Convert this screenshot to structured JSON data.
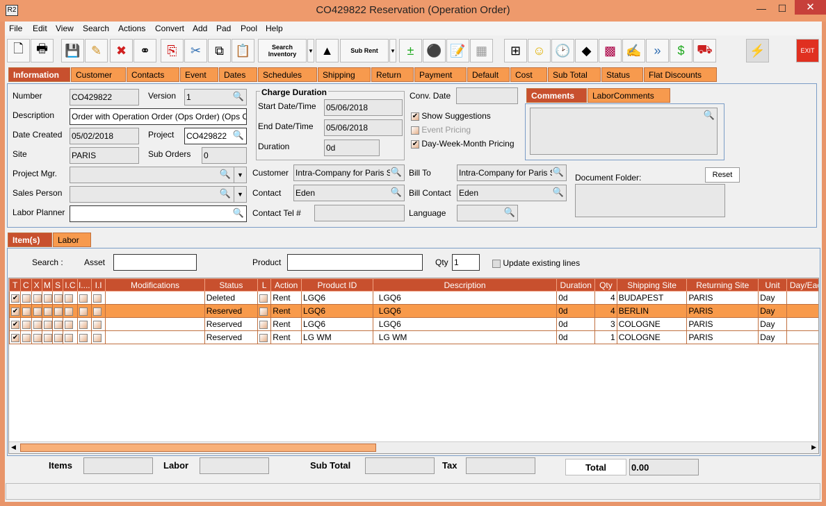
{
  "window": {
    "title": "CO429822 Reservation (Operation Order)",
    "logo": "R2"
  },
  "menu": [
    "File",
    "Edit",
    "View",
    "Search",
    "Actions",
    "Convert",
    "Add",
    "Pad",
    "Pool",
    "Help"
  ],
  "toolbar": {
    "search_inventory": "Search Inventory",
    "sub_rent": "Sub Rent",
    "exit": "EXIT"
  },
  "tabs": [
    "Information",
    "Customer",
    "Contacts",
    "Event",
    "Dates",
    "Schedules",
    "Shipping",
    "Return",
    "Payment",
    "Default",
    "Cost",
    "Sub Total",
    "Status",
    "Flat Discounts"
  ],
  "info": {
    "number_label": "Number",
    "number": "CO429822",
    "version_label": "Version",
    "version": "1",
    "description_label": "Description",
    "description": "Order with Operation Order (Ops Order) (Ops O",
    "date_created_label": "Date Created",
    "date_created": "05/02/2018",
    "project_label": "Project",
    "project": "CO429822",
    "site_label": "Site",
    "site": "PARIS",
    "sub_orders_label": "Sub Orders",
    "sub_orders": "0",
    "project_mgr_label": "Project Mgr.",
    "sales_person_label": "Sales Person",
    "labor_planner_label": "Labor Planner",
    "charge_duration": "Charge Duration",
    "start_label": "Start Date/Time",
    "start": "05/06/2018",
    "end_label": "End Date/Time",
    "end": "05/06/2018",
    "duration_label": "Duration",
    "duration": "0d",
    "conv_date_label": "Conv. Date",
    "show_suggestions": "Show Suggestions",
    "event_pricing": "Event Pricing",
    "dwm_pricing": "Day-Week-Month Pricing",
    "customer_label": "Customer",
    "customer": "Intra-Company for Paris Site",
    "contact_label": "Contact",
    "contact": "Eden",
    "contact_tel_label": "Contact Tel #",
    "bill_to_label": "Bill To",
    "bill_to": "Intra-Company for Paris Site",
    "bill_contact_label": "Bill Contact",
    "bill_contact": "Eden",
    "language_label": "Language",
    "comment_tabs": [
      "Comments",
      "LaborComments"
    ],
    "document_folder_label": "Document Folder:",
    "reset": "Reset"
  },
  "item_tabs": [
    "Item(s)",
    "Labor"
  ],
  "search": {
    "search_label": "Search :",
    "asset_label": "Asset",
    "product_label": "Product",
    "qty_label": "Qty",
    "qty": "1",
    "update_existing": "Update existing lines"
  },
  "table": {
    "columns": [
      "T",
      "C",
      "X",
      "M",
      "S",
      "I.C",
      "I....",
      "I.I",
      "Modifications",
      "Status",
      "L",
      "Action",
      "Product ID",
      "Description",
      "Duration",
      "Qty",
      "Shipping Site",
      "Returning Site",
      "Unit",
      "Day/Each"
    ],
    "rows": [
      {
        "status": "Deleted",
        "action": "Rent",
        "product_id": "LGQ6",
        "description": "LGQ6",
        "duration": "0d",
        "qty": "4",
        "shipping": "BUDAPEST",
        "returning": "PARIS",
        "unit": "Day"
      },
      {
        "status": "Reserved",
        "action": "Rent",
        "product_id": "LGQ6",
        "description": "LGQ6",
        "duration": "0d",
        "qty": "4",
        "shipping": "BERLIN",
        "returning": "PARIS",
        "unit": "Day"
      },
      {
        "status": "Reserved",
        "action": "Rent",
        "product_id": "LGQ6",
        "description": "LGQ6",
        "duration": "0d",
        "qty": "3",
        "shipping": "COLOGNE",
        "returning": "PARIS",
        "unit": "Day"
      },
      {
        "status": "Reserved",
        "action": "Rent",
        "product_id": "LG WM",
        "description": "LG WM",
        "duration": "0d",
        "qty": "1",
        "shipping": "COLOGNE",
        "returning": "PARIS",
        "unit": "Day"
      }
    ]
  },
  "totals": {
    "items_label": "Items",
    "labor_label": "Labor",
    "sub_total_label": "Sub Total",
    "tax_label": "Tax",
    "total_label": "Total",
    "total": "0.00"
  },
  "colors": {
    "accent": "#f79a4e",
    "active": "#c8502e",
    "frame": "#ee9a6c"
  }
}
